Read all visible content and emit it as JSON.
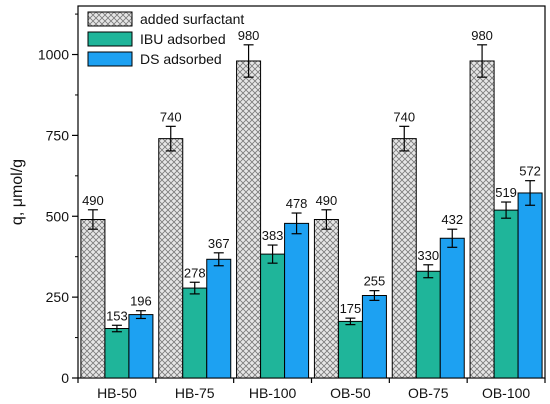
{
  "chart_data": {
    "type": "bar",
    "categories": [
      "HB-50",
      "HB-75",
      "HB-100",
      "OB-50",
      "OB-75",
      "OB-100"
    ],
    "series": [
      {
        "name": "added surfactant",
        "values": [
          490,
          740,
          980,
          490,
          740,
          980
        ],
        "errors": [
          30,
          38,
          50,
          30,
          38,
          50
        ],
        "pattern": "crosshatch",
        "color": "#d9d9d9"
      },
      {
        "name": "IBU adsorbed",
        "values": [
          153,
          278,
          383,
          175,
          330,
          519
        ],
        "errors": [
          10,
          18,
          28,
          10,
          20,
          25
        ],
        "color": "#1fb59a"
      },
      {
        "name": "DS adsorbed",
        "values": [
          196,
          367,
          478,
          255,
          432,
          572
        ],
        "errors": [
          12,
          20,
          32,
          15,
          28,
          38
        ],
        "color": "#1da1f2"
      }
    ],
    "data_labels": [
      [
        "490",
        "740",
        "980",
        "490",
        "740",
        "980"
      ],
      [
        "153",
        "278",
        "383",
        "175",
        "330",
        "519"
      ],
      [
        "196",
        "367",
        "478",
        "255",
        "432",
        "572"
      ]
    ],
    "ylabel": "q, μmol/g",
    "xlabel": "",
    "ylim": [
      0,
      1150
    ],
    "yticks": [
      "0",
      "250",
      "500",
      "750",
      "1000"
    ],
    "ytick_values": [
      0,
      250,
      500,
      750,
      1000
    ],
    "legend_position": "top-left",
    "grid": false
  }
}
